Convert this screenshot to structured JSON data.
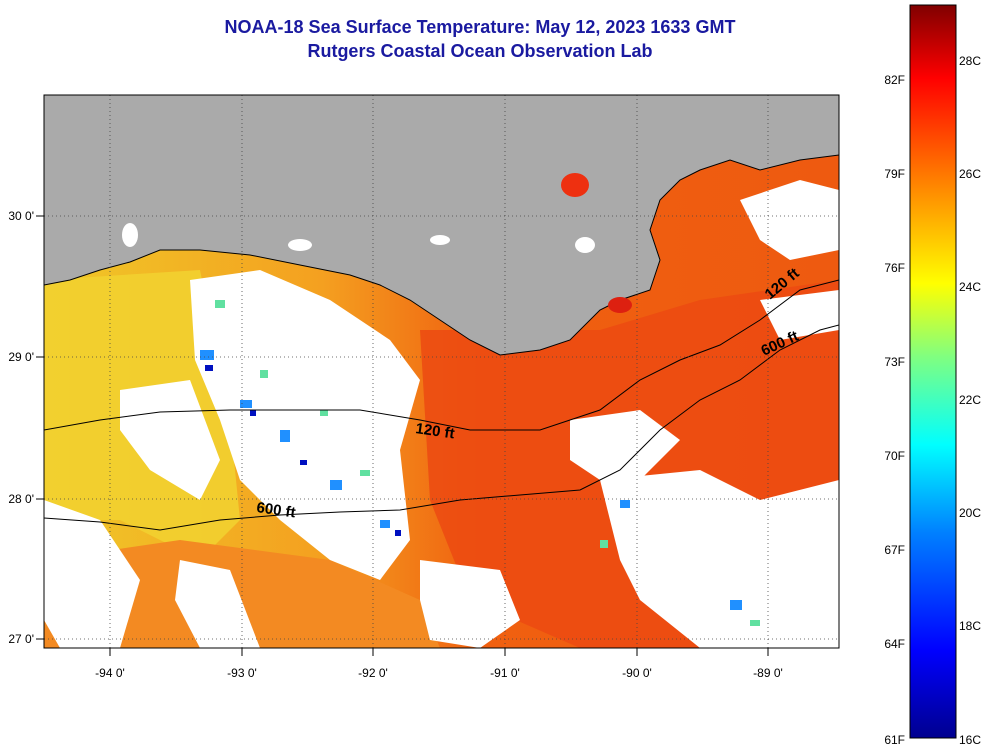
{
  "title": {
    "line1": "NOAA-18 Sea Surface Temperature:  May 12, 2023 1633 GMT",
    "line2": "Rutgers Coastal Ocean Observation Lab"
  },
  "map": {
    "x_ticks": [
      "-94 0'",
      "-93 0'",
      "-92 0'",
      "-91 0'",
      "-90 0'",
      "-89 0'"
    ],
    "y_ticks": [
      "30 0'",
      "29 0'",
      "28 0'",
      "27 0'"
    ],
    "contours": [
      "120 ft",
      "600 ft",
      "120 ft",
      "600 ft"
    ],
    "colors": {
      "land": "#aaaaaa",
      "cloud": "#ffffff"
    }
  },
  "colorbar": {
    "fahrenheit": [
      "82F",
      "79F",
      "76F",
      "73F",
      "70F",
      "67F",
      "64F",
      "61F"
    ],
    "celsius": [
      "28C",
      "26C",
      "24C",
      "22C",
      "20C",
      "18C",
      "16C"
    ],
    "range_c": [
      16,
      29.5
    ],
    "colors": [
      "#00008f",
      "#0000ff",
      "#0080ff",
      "#00ffff",
      "#80ff80",
      "#ffff00",
      "#ff8000",
      "#ff0000",
      "#800000"
    ]
  }
}
